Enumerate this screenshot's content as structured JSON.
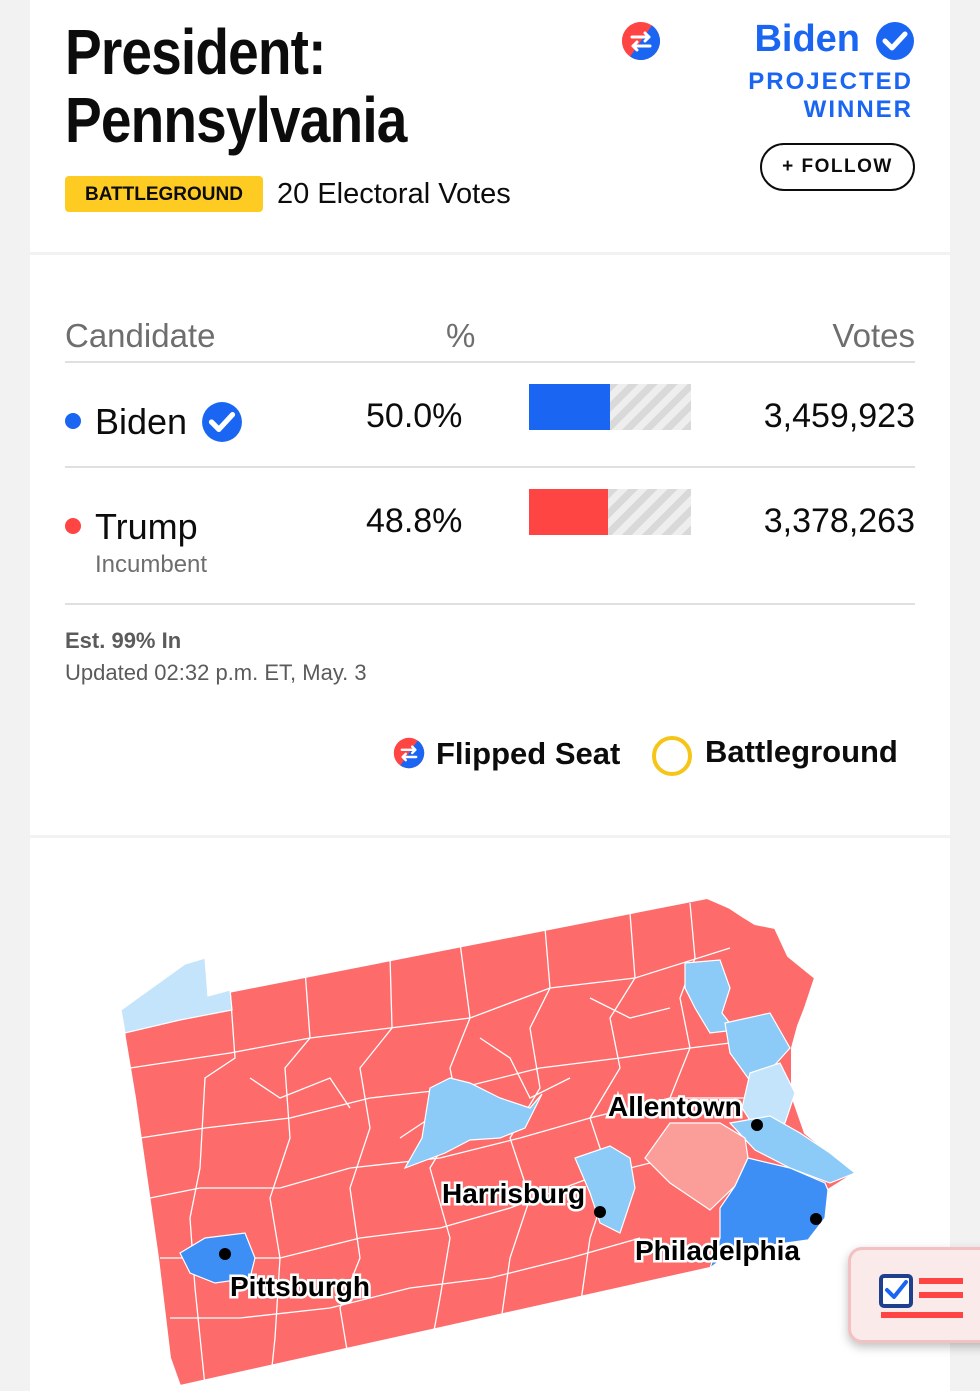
{
  "header": {
    "title_line1": "President:",
    "title_line2": "Pennsylvania",
    "badge": "BATTLEGROUND",
    "electoral_votes": "20 Electoral Votes",
    "winner_name": "Biden",
    "winner_label_line1": "PROJECTED",
    "winner_label_line2": "WINNER",
    "follow_label": "+ FOLLOW"
  },
  "table": {
    "col_candidate": "Candidate",
    "col_pct": "%",
    "col_votes": "Votes",
    "rows": [
      {
        "name": "Biden",
        "subtitle": "",
        "pct": "50.0%",
        "pct_value": 50.0,
        "votes": "3,459,923",
        "color": "#1a66f2",
        "winner": true
      },
      {
        "name": "Trump",
        "subtitle": "Incumbent",
        "pct": "48.8%",
        "pct_value": 48.8,
        "votes": "3,378,263",
        "color": "#ff4544",
        "winner": false
      }
    ]
  },
  "status": {
    "reporting": "Est. 99% In",
    "updated": "Updated 02:32 p.m. ET, May. 3"
  },
  "legend": {
    "flipped_label": "Flipped Seat",
    "battleground_label": "Battleground"
  },
  "map": {
    "colors": {
      "rep_strong": "#fd6b6b",
      "rep_lean": "#fb9e99",
      "dem_strong": "#3e8ff5",
      "dem_mid": "#8ccaf7",
      "dem_light": "#c3e4fb"
    },
    "cities": [
      "Allentown",
      "Harrisburg",
      "Philadelphia",
      "Pittsburgh"
    ]
  }
}
